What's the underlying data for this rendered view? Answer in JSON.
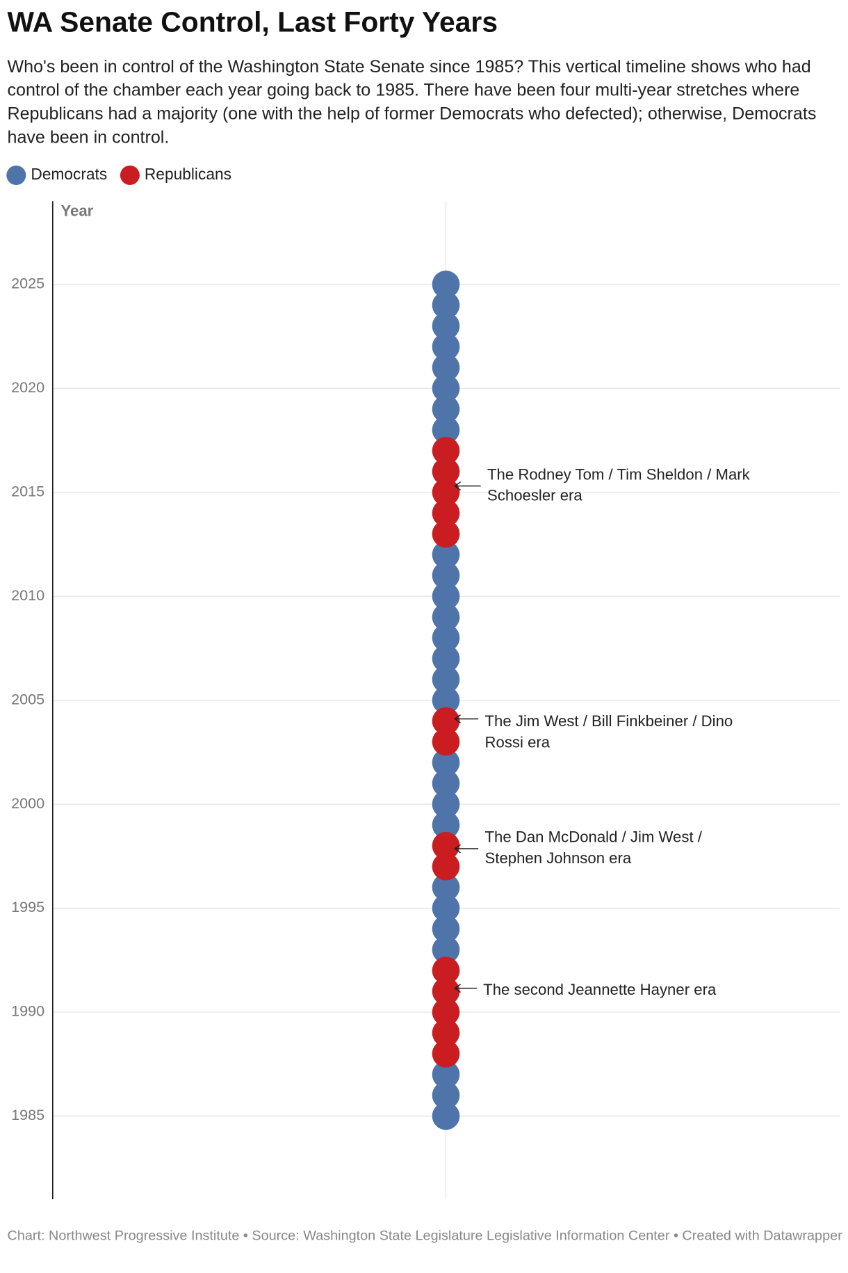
{
  "chart_data": {
    "type": "dot-timeline",
    "title": "WA Senate Control, Last Forty Years",
    "subtitle": "Who's been in control of the Washington State Senate since 1985? This vertical timeline shows who had control of the chamber each year going back to 1985. There have been four multi-year stretches where Republicans had a majority (one with the help of former Democrats who defected); otherwise, Democrats have been in control.",
    "y_label": "Year",
    "series": [
      {
        "name": "Democrats",
        "color": "#4e74aa",
        "values": [
          1985,
          1986,
          1987,
          1993,
          1994,
          1995,
          1996,
          1999,
          2000,
          2001,
          2002,
          2005,
          2006,
          2007,
          2008,
          2009,
          2010,
          2011,
          2012,
          2018,
          2019,
          2020,
          2021,
          2022,
          2023,
          2024,
          2025
        ]
      },
      {
        "name": "Republicans",
        "color": "#c91d22",
        "values": [
          1988,
          1989,
          1990,
          1991,
          1992,
          1997,
          1998,
          2003,
          2004,
          2013,
          2014,
          2015,
          2016,
          2017
        ]
      }
    ],
    "ylim": [
      1981,
      2029
    ],
    "yticks": [
      1985,
      1990,
      1995,
      2000,
      2005,
      2010,
      2015,
      2020,
      2025
    ],
    "grid": true,
    "annotations": [
      "The Rodney Tom / Tim Sheldon / Mark Schoesler era",
      "The Jim West / Bill Finkbeiner / Dino Rossi era",
      "The Dan McDonald / Jim West / Stephen Johnson era",
      "The second Jeannette Hayner era"
    ],
    "source": "Chart: Northwest Progressive Institute • Source: Washington State Legislature Legislative Information Center • Created with Datawrapper"
  }
}
